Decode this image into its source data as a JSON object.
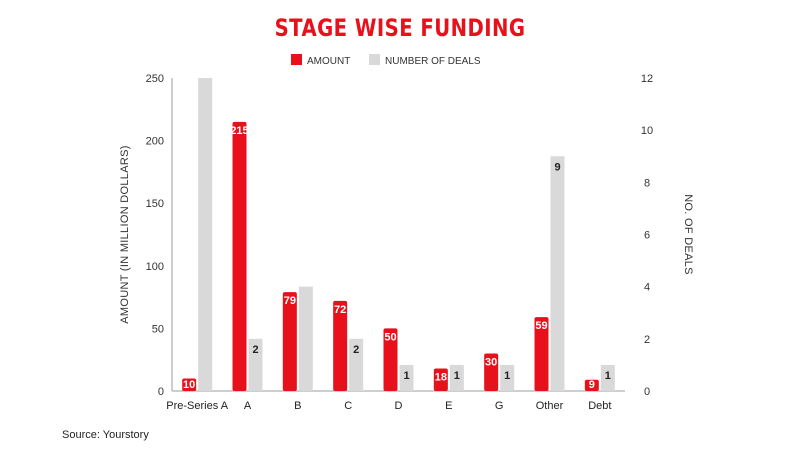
{
  "colors": {
    "amount": "#e8101a",
    "deals": "#d9d9d9",
    "title": "#e8101a"
  },
  "source": "Source: Yourstory",
  "chart_data": {
    "type": "bar",
    "title": "STAGE WISE FUNDING",
    "categories": [
      "Pre-Series A",
      "A",
      "B",
      "C",
      "D",
      "E",
      "G",
      "Other",
      "Debt"
    ],
    "series": [
      {
        "name": "AMOUNT",
        "axis": "left",
        "values": [
          10,
          215,
          79,
          72,
          50,
          18,
          30,
          59,
          9
        ]
      },
      {
        "name": "NUMBER OF DEALS",
        "axis": "right",
        "values": [
          12,
          2,
          4,
          2,
          1,
          1,
          1,
          9,
          1
        ]
      }
    ],
    "amount_data_labels": [
      "10",
      "215",
      "79",
      "72",
      "50",
      "18",
      "30",
      "59",
      "9"
    ],
    "deals_data_labels": [
      "",
      "2",
      "",
      "2",
      "1",
      "1",
      "1",
      "9",
      "1"
    ],
    "ylabel": "AMOUNT (IN MILLION DOLLARS)",
    "ylabel_right": "NO. OF DEALS",
    "ylim": [
      0,
      250
    ],
    "ylim_right": [
      0,
      12
    ],
    "yticks": [
      "0",
      "50",
      "100",
      "150",
      "200",
      "250"
    ],
    "yticks_right": [
      "0",
      "2",
      "4",
      "6",
      "8",
      "10",
      "12"
    ],
    "grid": false,
    "legend_position": "top-center"
  }
}
